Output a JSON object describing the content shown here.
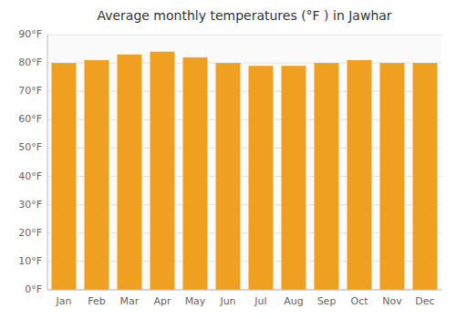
{
  "chart_data": {
    "type": "bar",
    "title": "Average monthly temperatures (°F ) in Jawhar",
    "categories": [
      "Jan",
      "Feb",
      "Mar",
      "Apr",
      "May",
      "Jun",
      "Jul",
      "Aug",
      "Sep",
      "Oct",
      "Nov",
      "Dec"
    ],
    "values": [
      80,
      81,
      83,
      84,
      82,
      80,
      79,
      79,
      80,
      81,
      80,
      80
    ],
    "color": "#F0A020",
    "ylim": [
      0,
      90
    ],
    "yticks": [
      {
        "value": 0,
        "label": "0°F"
      },
      {
        "value": 10,
        "label": "10°F"
      },
      {
        "value": 20,
        "label": "20°F"
      },
      {
        "value": 30,
        "label": "30°F"
      },
      {
        "value": 40,
        "label": "40°F"
      },
      {
        "value": 50,
        "label": "50°F"
      },
      {
        "value": 60,
        "label": "60°F"
      },
      {
        "value": 70,
        "label": "70°F"
      },
      {
        "value": 80,
        "label": "80°F"
      },
      {
        "value": 90,
        "label": "90°F"
      }
    ],
    "grid": true
  }
}
